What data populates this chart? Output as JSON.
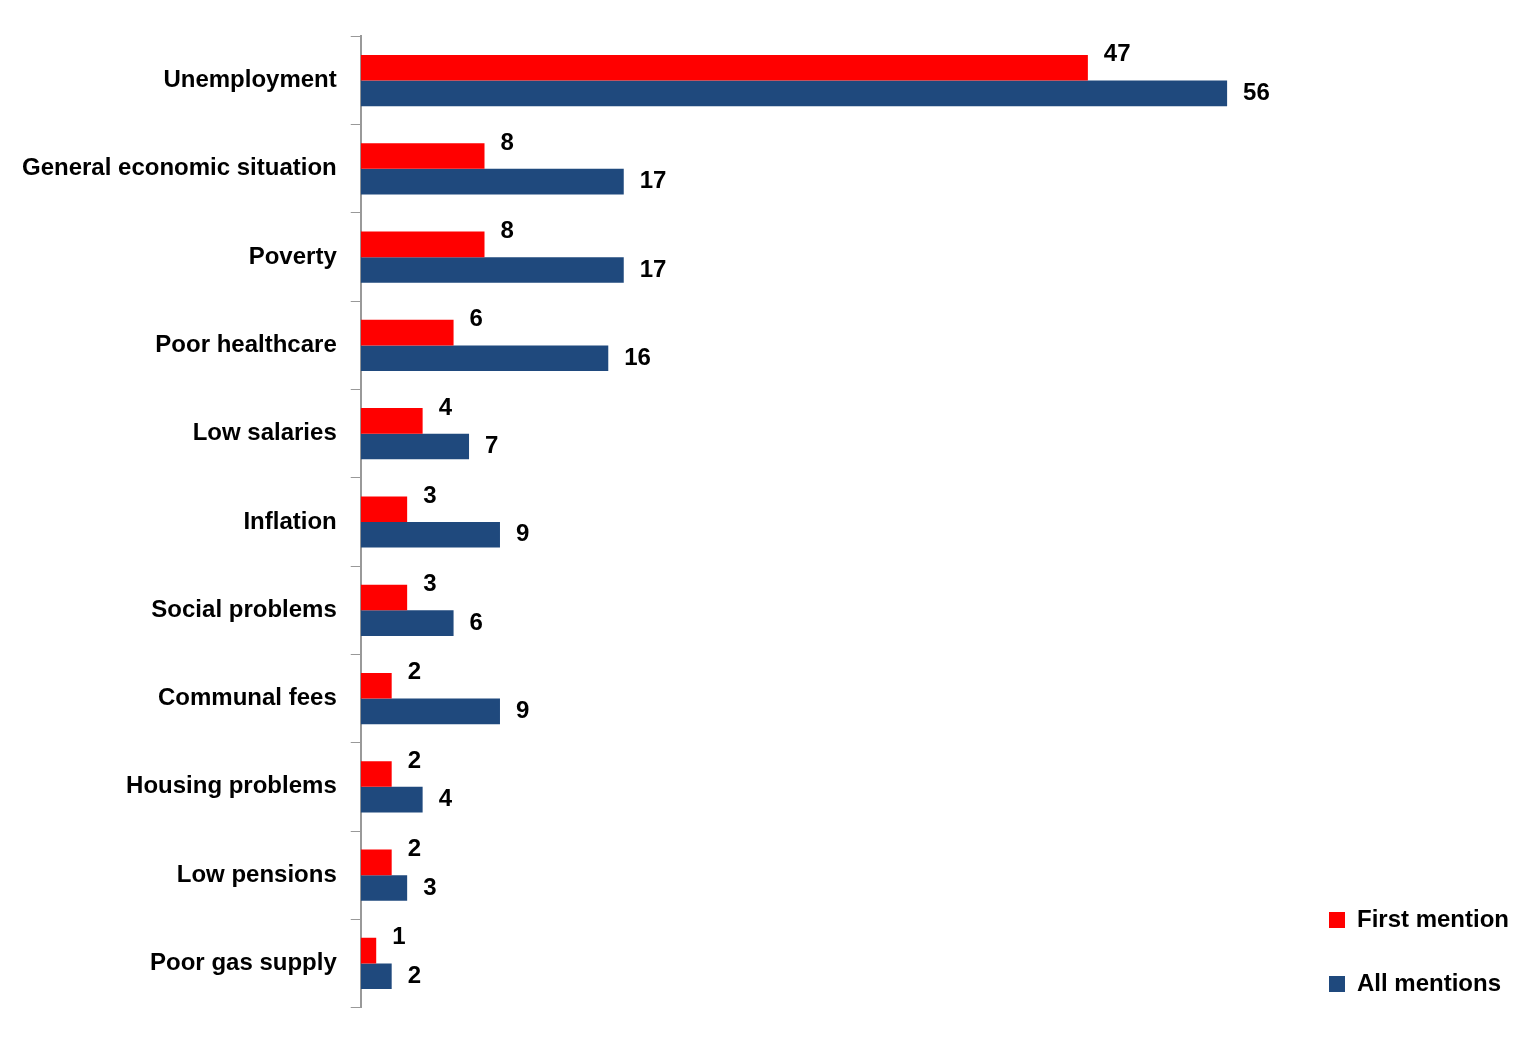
{
  "chart_data": {
    "type": "bar",
    "orientation": "horizontal",
    "categories": [
      "Unemployment",
      "General economic situation",
      "Poverty",
      "Poor healthcare",
      "Low salaries",
      "Inflation",
      "Social problems",
      "Communal fees",
      "Housing problems",
      "Low pensions",
      "Poor gas supply"
    ],
    "series": [
      {
        "name": "First mention",
        "color": "#ff0000",
        "values": [
          47,
          8,
          8,
          6,
          4,
          3,
          3,
          2,
          2,
          2,
          1
        ]
      },
      {
        "name": "All mentions",
        "color": "#1f497d",
        "values": [
          56,
          17,
          17,
          16,
          7,
          9,
          6,
          9,
          4,
          3,
          2
        ]
      }
    ],
    "data_labels": true,
    "legend": "bottom right",
    "grid": false,
    "tick_labels": "y"
  }
}
